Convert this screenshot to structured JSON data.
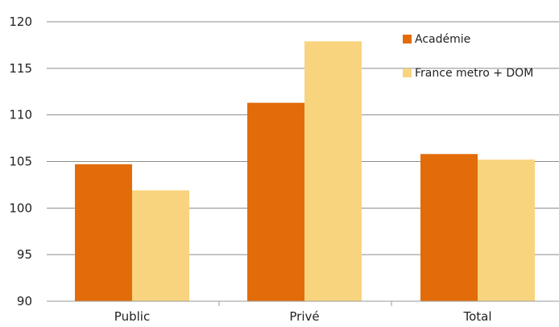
{
  "chart_data": {
    "type": "bar",
    "categories": [
      "Public",
      "Privé",
      "Total"
    ],
    "series": [
      {
        "name": "Académie",
        "color": "#E36C0A",
        "values": [
          104.7,
          111.3,
          105.8
        ]
      },
      {
        "name": "France metro + DOM",
        "color": "#F8D47E",
        "values": [
          101.9,
          117.9,
          105.2
        ]
      }
    ],
    "ylim": [
      90,
      120
    ],
    "yticks": [
      90,
      95,
      100,
      105,
      110,
      115,
      120
    ],
    "grid": true,
    "legend_position": "top-right"
  }
}
